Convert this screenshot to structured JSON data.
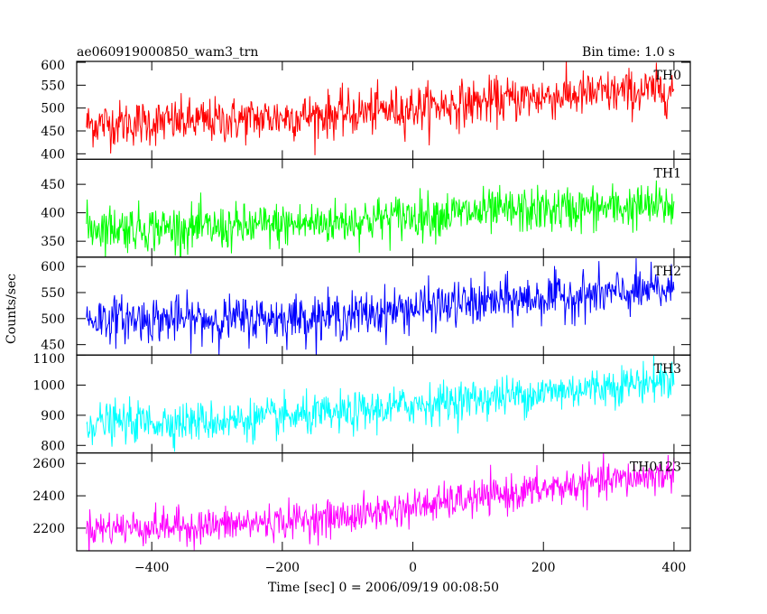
{
  "chart_data": {
    "type": "line",
    "title": "ae060919000850_wam3_trn",
    "subtitle": "Bin time: 1.0 s",
    "xlabel": "Time [sec] 0 = 2006/09/19 00:08:50",
    "ylabel": "Counts/sec",
    "xlim": [
      -515,
      425
    ],
    "x_ticks": [
      -400,
      -200,
      0,
      200,
      400
    ],
    "data_x_range": [
      -500,
      400
    ],
    "grid": false,
    "panels": [
      {
        "name": "TH0",
        "color": "#ff0000",
        "ylim": [
          388,
          602
        ],
        "y_ticks": [
          400,
          450,
          500,
          550,
          600
        ],
        "trend": [
          [
            -500,
            465
          ],
          [
            -300,
            472
          ],
          [
            -100,
            488
          ],
          [
            0,
            500
          ],
          [
            200,
            525
          ],
          [
            400,
            540
          ]
        ],
        "noise_sd": 25
      },
      {
        "name": "TH1",
        "color": "#00ff00",
        "ylim": [
          322,
          494
        ],
        "y_ticks": [
          350,
          400,
          450
        ],
        "trend": [
          [
            -500,
            375
          ],
          [
            -300,
            372
          ],
          [
            -100,
            385
          ],
          [
            0,
            395
          ],
          [
            200,
            405
          ],
          [
            400,
            412
          ]
        ],
        "noise_sd": 20
      },
      {
        "name": "TH2",
        "color": "#0000ff",
        "ylim": [
          430,
          618
        ],
        "y_ticks": [
          450,
          500,
          550,
          600
        ],
        "trend": [
          [
            -500,
            500
          ],
          [
            -300,
            498
          ],
          [
            -100,
            505
          ],
          [
            0,
            520
          ],
          [
            200,
            540
          ],
          [
            400,
            555
          ]
        ],
        "noise_sd": 22
      },
      {
        "name": "TH3",
        "color": "#00ffff",
        "ylim": [
          775,
          1100
        ],
        "y_ticks": [
          800,
          900,
          1000,
          1100
        ],
        "trend": [
          [
            -500,
            875
          ],
          [
            -300,
            880
          ],
          [
            -100,
            905
          ],
          [
            0,
            935
          ],
          [
            200,
            975
          ],
          [
            400,
            1020
          ]
        ],
        "noise_sd": 33
      },
      {
        "name": "TH0123",
        "color": "#ff00ff",
        "ylim": [
          2060,
          2665
        ],
        "y_ticks": [
          2200,
          2400,
          2600
        ],
        "trend": [
          [
            -500,
            2200
          ],
          [
            -300,
            2215
          ],
          [
            -100,
            2270
          ],
          [
            0,
            2330
          ],
          [
            200,
            2440
          ],
          [
            400,
            2540
          ]
        ],
        "noise_sd": 55
      }
    ]
  }
}
